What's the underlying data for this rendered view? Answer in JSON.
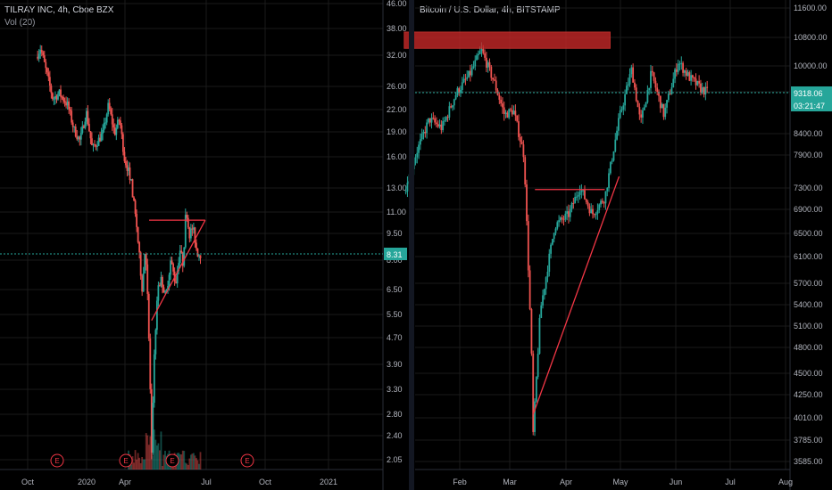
{
  "chart_data": [
    {
      "type": "candlestick",
      "title": "TILRAY INC, 4h, Cboe BZX",
      "indicator": "Vol (20)",
      "x_ticks": [
        "Oct",
        "2020",
        "Apr",
        "Jul",
        "Oct",
        "2021"
      ],
      "y_ticks": [
        "46.00",
        "38.00",
        "32.00",
        "26.00",
        "22.00",
        "19.00",
        "16.00",
        "13.00",
        "11.00",
        "9.50",
        "8.00",
        "6.50",
        "5.50",
        "4.70",
        "3.90",
        "3.30",
        "2.80",
        "2.40",
        "2.05"
      ],
      "y_scale": "log",
      "ylim": [
        1.9,
        48
      ],
      "last_price": "8.31",
      "earnings_markers": [
        "E",
        "E",
        "E",
        "E"
      ],
      "price_path": [
        [
          "2019-09-15",
          32
        ],
        [
          "2019-09-22",
          34
        ],
        [
          "2019-10-01",
          29
        ],
        [
          "2019-10-12",
          24
        ],
        [
          "2019-10-22",
          25
        ],
        [
          "2019-11-05",
          23
        ],
        [
          "2019-11-15",
          19.5
        ],
        [
          "2019-11-25",
          18
        ],
        [
          "2019-12-05",
          22
        ],
        [
          "2019-12-15",
          17
        ],
        [
          "2020-01-01",
          19
        ],
        [
          "2020-01-10",
          23
        ],
        [
          "2020-01-20",
          19
        ],
        [
          "2020-01-28",
          21
        ],
        [
          "2020-02-05",
          16
        ],
        [
          "2020-02-15",
          14
        ],
        [
          "2020-02-25",
          10
        ],
        [
          "2020-03-05",
          6.5
        ],
        [
          "2020-03-10",
          9
        ],
        [
          "2020-03-14",
          6
        ],
        [
          "2020-03-18",
          3.2
        ],
        [
          "2020-03-20",
          2.1
        ],
        [
          "2020-03-25",
          4.5
        ],
        [
          "2020-03-30",
          6.5
        ],
        [
          "2020-04-05",
          7
        ],
        [
          "2020-04-12",
          6.2
        ],
        [
          "2020-04-20",
          8
        ],
        [
          "2020-04-28",
          6.8
        ],
        [
          "2020-05-05",
          8.6
        ],
        [
          "2020-05-10",
          7.8
        ],
        [
          "2020-05-15",
          11.5
        ],
        [
          "2020-05-20",
          9.5
        ],
        [
          "2020-05-26",
          10
        ],
        [
          "2020-06-02",
          8.4
        ],
        [
          "2020-06-08",
          8.31
        ]
      ],
      "annotations": {
        "resistance_line": {
          "from": [
            "2020-03-16",
            10.5
          ],
          "to": [
            "2020-06-15",
            10.5
          ]
        },
        "support_line": {
          "from": [
            "2020-03-20",
            5.3
          ],
          "to": [
            "2020-06-15",
            10.5
          ]
        }
      }
    },
    {
      "type": "candlestick",
      "title": "Bitcoin / U.S. Dollar, 4h, BITSTAMP",
      "x_ticks": [
        "Feb",
        "Mar",
        "Apr",
        "May",
        "Jun",
        "Jul",
        "Aug"
      ],
      "y_ticks": [
        "11600.00",
        "10800.00",
        "10000.00",
        "9318.06",
        "8400.00",
        "7900.00",
        "7300.00",
        "6900.00",
        "6500.00",
        "6100.00",
        "5700.00",
        "5400.00",
        "5100.00",
        "4800.00",
        "4500.00",
        "4250.00",
        "4010.00",
        "3785.00",
        "3585.00"
      ],
      "y_scale": "log",
      "ylim": [
        3500,
        12000
      ],
      "last_price": "9318.06",
      "countdown": "03:21:47",
      "price_path": [
        [
          "2020-01-01",
          7200
        ],
        [
          "2020-01-08",
          8000
        ],
        [
          "2020-01-15",
          8700
        ],
        [
          "2020-01-22",
          8500
        ],
        [
          "2020-01-30",
          9300
        ],
        [
          "2020-02-07",
          9800
        ],
        [
          "2020-02-13",
          10400
        ],
        [
          "2020-02-20",
          9600
        ],
        [
          "2020-02-26",
          8800
        ],
        [
          "2020-03-02",
          8900
        ],
        [
          "2020-03-08",
          7900
        ],
        [
          "2020-03-12",
          4800
        ],
        [
          "2020-03-13",
          3850
        ],
        [
          "2020-03-17",
          5300
        ],
        [
          "2020-03-25",
          6600
        ],
        [
          "2020-04-02",
          6800
        ],
        [
          "2020-04-08",
          7300
        ],
        [
          "2020-04-15",
          6800
        ],
        [
          "2020-04-22",
          7100
        ],
        [
          "2020-04-30",
          8700
        ],
        [
          "2020-05-07",
          9900
        ],
        [
          "2020-05-12",
          8600
        ],
        [
          "2020-05-18",
          9800
        ],
        [
          "2020-05-25",
          8800
        ],
        [
          "2020-06-02",
          10100
        ],
        [
          "2020-06-08",
          9700
        ],
        [
          "2020-06-15",
          9400
        ],
        [
          "2020-06-19",
          9318.06
        ]
      ],
      "annotations": {
        "resistance_box": {
          "x_from": "2020-01-01",
          "x_to": "2020-04-25",
          "y_from": 10450,
          "y_to": 10900
        },
        "horizontal_line": {
          "from": [
            "2020-03-14",
            7250
          ],
          "to": [
            "2020-04-22",
            7250
          ]
        },
        "support_line": {
          "from": [
            "2020-03-13",
            4050
          ],
          "to": [
            "2020-04-30",
            7500
          ]
        }
      }
    }
  ],
  "colors": {
    "background": "#000000",
    "up": "#26a69a",
    "down": "#ef5350",
    "annotation": "#f23645",
    "box": "#c62828",
    "grid": "#1a1a1a",
    "axis_text": "#b2b5be",
    "price_tag": "#26a69a"
  }
}
